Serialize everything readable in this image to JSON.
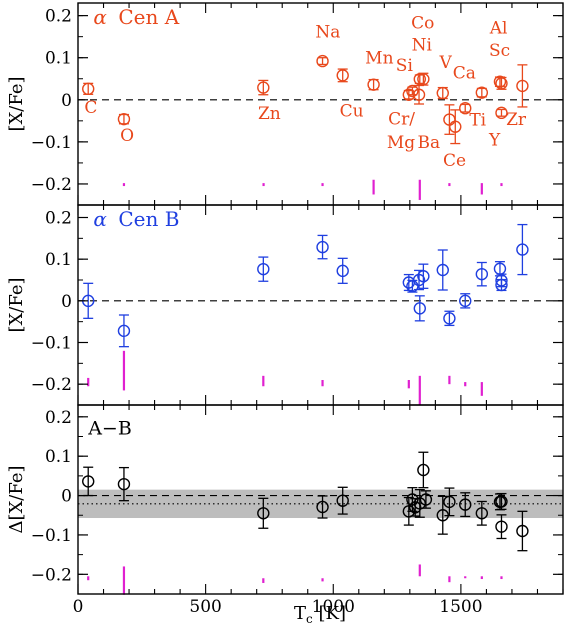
{
  "chart_data": {
    "type": "scatter",
    "xlabel_main": "T",
    "xlabel_sub": "c",
    "xlabel_unit": " [K]",
    "xlim": [
      0,
      1900
    ],
    "x_ticks": [
      0,
      500,
      1000,
      1500
    ],
    "y_ticks": [
      -0.2,
      -0.1,
      0,
      0.1,
      0.2
    ],
    "colors": {
      "A": "#e8481c",
      "B": "#1f3fe0",
      "AB": "#000000",
      "magenta": "#e020d0",
      "band": "#bdbdbd"
    },
    "panels": [
      {
        "key": "A",
        "ylabel": "[X/Fe]",
        "label_greek": "α",
        "label_text": "Cen A",
        "ylim": [
          -0.25,
          0.23
        ],
        "points": [
          {
            "x": 40,
            "y": 0.026,
            "err": 0.013
          },
          {
            "x": 180,
            "y": -0.046,
            "err": 0.011
          },
          {
            "x": 726,
            "y": 0.029,
            "err": 0.017
          },
          {
            "x": 958,
            "y": 0.092,
            "err": 0.008
          },
          {
            "x": 1037,
            "y": 0.058,
            "err": 0.015
          },
          {
            "x": 1158,
            "y": 0.036,
            "err": 0.012
          },
          {
            "x": 1296,
            "y": 0.012,
            "err": 0.01
          },
          {
            "x": 1310,
            "y": 0.021,
            "err": 0.009
          },
          {
            "x": 1336,
            "y": 0.012,
            "err": 0.022
          },
          {
            "x": 1339,
            "y": 0.049,
            "err": 0.01
          },
          {
            "x": 1353,
            "y": 0.049,
            "err": 0.014
          },
          {
            "x": 1429,
            "y": 0.016,
            "err": 0.013
          },
          {
            "x": 1455,
            "y": -0.047,
            "err": 0.035
          },
          {
            "x": 1478,
            "y": -0.064,
            "err": 0.04
          },
          {
            "x": 1517,
            "y": -0.02,
            "err": 0.009
          },
          {
            "x": 1582,
            "y": 0.017,
            "err": 0.01
          },
          {
            "x": 1653,
            "y": 0.043,
            "err": 0.011
          },
          {
            "x": 1659,
            "y": 0.039,
            "err": 0.014
          },
          {
            "x": 1659,
            "y": -0.031,
            "err": 0.008
          },
          {
            "x": 1741,
            "y": 0.033,
            "err": 0.05
          }
        ],
        "labels": [
          {
            "text": "C",
            "x": 25,
            "y": -0.031
          },
          {
            "text": "O",
            "x": 165,
            "y": -0.098
          },
          {
            "text": "Zn",
            "x": 705,
            "y": -0.046
          },
          {
            "text": "Na",
            "x": 930,
            "y": 0.148
          },
          {
            "text": "Cu",
            "x": 1025,
            "y": -0.04
          },
          {
            "text": "Mn",
            "x": 1125,
            "y": 0.086
          },
          {
            "text": "Si",
            "x": 1245,
            "y": 0.069
          },
          {
            "text": "Co",
            "x": 1305,
            "y": 0.17
          },
          {
            "text": "Ni",
            "x": 1307,
            "y": 0.117
          },
          {
            "text": "V",
            "x": 1416,
            "y": 0.075
          },
          {
            "text": "Ca",
            "x": 1468,
            "y": 0.051
          },
          {
            "text": "Al",
            "x": 1613,
            "y": 0.158
          },
          {
            "text": "Sc",
            "x": 1610,
            "y": 0.104
          },
          {
            "text": "Cr/",
            "x": 1215,
            "y": -0.059
          },
          {
            "text": "Mg",
            "x": 1210,
            "y": -0.114
          },
          {
            "text": "Ba",
            "x": 1330,
            "y": -0.114
          },
          {
            "text": "Ti",
            "x": 1533,
            "y": -0.061
          },
          {
            "text": "Zr",
            "x": 1677,
            "y": -0.06
          },
          {
            "text": "Y",
            "x": 1610,
            "y": -0.109
          },
          {
            "text": "Ce",
            "x": 1430,
            "y": -0.157
          }
        ],
        "residuals": [
          {
            "x": 180,
            "top": -0.198,
            "bottom": -0.205
          },
          {
            "x": 727,
            "top": -0.198,
            "bottom": -0.205
          },
          {
            "x": 958,
            "top": -0.198,
            "bottom": -0.205
          },
          {
            "x": 1158,
            "top": -0.19,
            "bottom": -0.225
          },
          {
            "x": 1339,
            "top": -0.19,
            "bottom": -0.238
          },
          {
            "x": 1455,
            "top": -0.198,
            "bottom": -0.205
          },
          {
            "x": 1582,
            "top": -0.198,
            "bottom": -0.225
          },
          {
            "x": 1659,
            "top": -0.198,
            "bottom": -0.205
          }
        ]
      },
      {
        "key": "B",
        "ylabel": "[X/Fe]",
        "label_greek": "α",
        "label_text": "Cen B",
        "ylim": [
          -0.25,
          0.23
        ],
        "points": [
          {
            "x": 40,
            "y": 0.0,
            "err": 0.042
          },
          {
            "x": 180,
            "y": -0.072,
            "err": 0.038
          },
          {
            "x": 726,
            "y": 0.076,
            "err": 0.029
          },
          {
            "x": 958,
            "y": 0.129,
            "err": 0.028
          },
          {
            "x": 1037,
            "y": 0.072,
            "err": 0.03
          },
          {
            "x": 1296,
            "y": 0.044,
            "err": 0.019
          },
          {
            "x": 1310,
            "y": 0.035,
            "err": 0.014
          },
          {
            "x": 1336,
            "y": 0.05,
            "err": 0.023
          },
          {
            "x": 1339,
            "y": -0.018,
            "err": 0.03
          },
          {
            "x": 1353,
            "y": 0.059,
            "err": 0.029
          },
          {
            "x": 1429,
            "y": 0.074,
            "err": 0.048
          },
          {
            "x": 1455,
            "y": -0.042,
            "err": 0.017
          },
          {
            "x": 1517,
            "y": 0.0,
            "err": 0.017
          },
          {
            "x": 1582,
            "y": 0.064,
            "err": 0.028
          },
          {
            "x": 1653,
            "y": 0.077,
            "err": 0.017
          },
          {
            "x": 1659,
            "y": 0.049,
            "err": 0.015
          },
          {
            "x": 1659,
            "y": 0.038,
            "err": 0.013
          },
          {
            "x": 1741,
            "y": 0.123,
            "err": 0.06
          }
        ],
        "residuals": [
          {
            "x": 40,
            "top": -0.185,
            "bottom": -0.205
          },
          {
            "x": 180,
            "top": -0.12,
            "bottom": -0.215
          },
          {
            "x": 726,
            "top": -0.18,
            "bottom": -0.205
          },
          {
            "x": 958,
            "top": -0.19,
            "bottom": -0.205
          },
          {
            "x": 1296,
            "top": -0.19,
            "bottom": -0.21
          },
          {
            "x": 1339,
            "top": -0.18,
            "bottom": -0.25
          },
          {
            "x": 1455,
            "top": -0.18,
            "bottom": -0.2
          },
          {
            "x": 1517,
            "top": -0.195,
            "bottom": -0.205
          },
          {
            "x": 1582,
            "top": -0.195,
            "bottom": -0.228
          }
        ]
      },
      {
        "key": "AB",
        "ylabel": "Δ[X/Fe]",
        "label_text": "A−B",
        "ylim": [
          -0.25,
          0.23
        ],
        "band": [
          -0.057,
          0.015
        ],
        "dotted_y": -0.021,
        "points": [
          {
            "x": 40,
            "y": 0.036,
            "err": 0.036
          },
          {
            "x": 180,
            "y": 0.029,
            "err": 0.042
          },
          {
            "x": 726,
            "y": -0.045,
            "err": 0.038
          },
          {
            "x": 958,
            "y": -0.029,
            "err": 0.028
          },
          {
            "x": 1037,
            "y": -0.013,
            "err": 0.034
          },
          {
            "x": 1296,
            "y": -0.04,
            "err": 0.035
          },
          {
            "x": 1310,
            "y": -0.01,
            "err": 0.03
          },
          {
            "x": 1321,
            "y": -0.03,
            "err": 0.022
          },
          {
            "x": 1339,
            "y": -0.02,
            "err": 0.035
          },
          {
            "x": 1353,
            "y": 0.065,
            "err": 0.045
          },
          {
            "x": 1363,
            "y": -0.01,
            "err": 0.022
          },
          {
            "x": 1429,
            "y": -0.05,
            "err": 0.048
          },
          {
            "x": 1455,
            "y": -0.016,
            "err": 0.035
          },
          {
            "x": 1517,
            "y": -0.023,
            "err": 0.03
          },
          {
            "x": 1582,
            "y": -0.045,
            "err": 0.03
          },
          {
            "x": 1653,
            "y": -0.016,
            "err": 0.02
          },
          {
            "x": 1659,
            "y": -0.015,
            "err": 0.02
          },
          {
            "x": 1659,
            "y": -0.079,
            "err": 0.03
          },
          {
            "x": 1741,
            "y": -0.09,
            "err": 0.05
          }
        ],
        "residuals": [
          {
            "x": 40,
            "top": -0.205,
            "bottom": -0.215
          },
          {
            "x": 180,
            "top": -0.18,
            "bottom": -0.252
          },
          {
            "x": 726,
            "top": -0.21,
            "bottom": -0.222
          },
          {
            "x": 958,
            "top": -0.21,
            "bottom": -0.218
          },
          {
            "x": 1339,
            "top": -0.175,
            "bottom": -0.205
          },
          {
            "x": 1455,
            "top": -0.205,
            "bottom": -0.22
          },
          {
            "x": 1517,
            "top": -0.205,
            "bottom": -0.21
          },
          {
            "x": 1582,
            "top": -0.205,
            "bottom": -0.212
          },
          {
            "x": 1659,
            "top": -0.205,
            "bottom": -0.212
          }
        ]
      }
    ]
  }
}
